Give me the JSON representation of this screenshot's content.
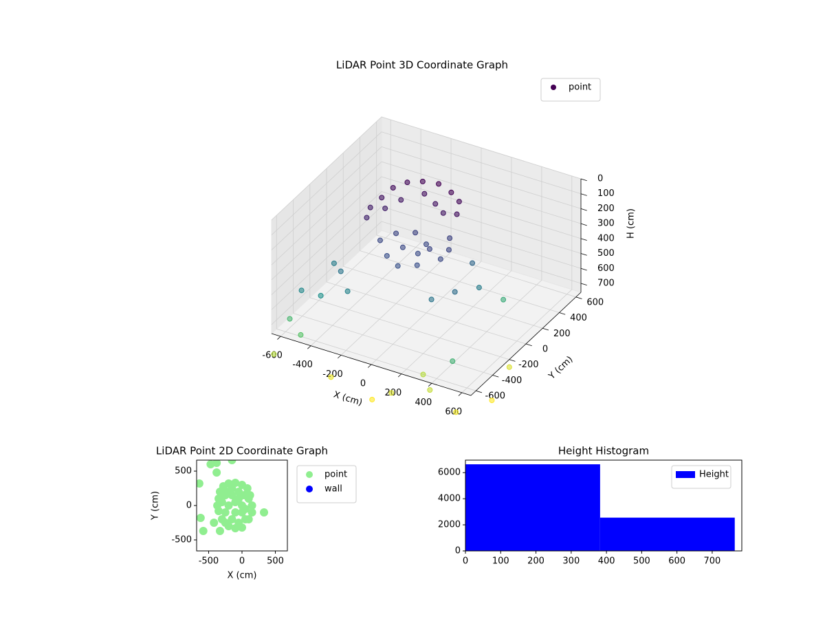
{
  "chart_data": [
    {
      "type": "scatter3d",
      "title": "LiDAR Point 3D Coordinate Graph",
      "x_label": "X (cm)",
      "y_label": "Y (cm)",
      "z_label": "H (cm)",
      "xlim": [
        -660,
        660
      ],
      "ylim": [
        -660,
        660
      ],
      "zlim": [
        0,
        760
      ],
      "zinvert": true,
      "xticks": [
        -600,
        -400,
        -200,
        0,
        200,
        400,
        600
      ],
      "yticks": [
        -600,
        -400,
        -200,
        0,
        200,
        400,
        600
      ],
      "zticks": [
        0,
        100,
        200,
        300,
        400,
        500,
        600,
        700
      ],
      "cmap": "viridis",
      "grid": true,
      "legend": "upper right",
      "series": [
        {
          "name": "point",
          "x": [
            -350,
            -330,
            -280,
            -200,
            -100,
            0,
            80,
            120,
            -370,
            -350,
            -250,
            -150,
            -50,
            30,
            -300,
            -250,
            -150,
            -50,
            50,
            150,
            150,
            100,
            -100,
            0,
            -200,
            0,
            -100,
            50,
            -400,
            -500,
            -300,
            -450,
            200,
            300,
            250,
            350,
            -550,
            -600,
            450,
            400,
            -500,
            -650,
            100,
            300,
            500,
            600,
            -300,
            0,
            550,
            200
          ],
          "y": [
            100,
            200,
            280,
            320,
            330,
            300,
            250,
            150,
            0,
            -80,
            150,
            250,
            200,
            150,
            50,
            -100,
            -200,
            -250,
            -200,
            -100,
            0,
            100,
            -100,
            -100,
            0,
            0,
            50,
            -50,
            -300,
            -200,
            -400,
            -450,
            -300,
            -200,
            100,
            0,
            -500,
            -550,
            -500,
            200,
            -600,
            -650,
            -600,
            -500,
            -550,
            -300,
            -600,
            -650,
            0,
            -400
          ],
          "z": [
            150,
            130,
            120,
            110,
            100,
            110,
            120,
            140,
            170,
            190,
            160,
            140,
            150,
            160,
            180,
            300,
            320,
            330,
            320,
            300,
            290,
            280,
            300,
            310,
            290,
            300,
            280,
            290,
            450,
            480,
            500,
            550,
            450,
            420,
            400,
            480,
            520,
            700,
            680,
            650,
            750,
            900,
            950,
            920,
            980,
            1000,
            970,
            1000,
            950,
            900
          ]
        }
      ]
    },
    {
      "type": "scatter",
      "title": "LiDAR Point 2D Coordinate Graph",
      "x_label": "X (cm)",
      "y_label": "Y (cm)",
      "xlim": [
        -680,
        680
      ],
      "ylim": [
        -660,
        660
      ],
      "xticks": [
        -500,
        0,
        500
      ],
      "yticks": [
        -500,
        0,
        500
      ],
      "legend": "outside upper right",
      "series": [
        {
          "name": "point",
          "color": "#90ee90",
          "x": [
            -350,
            -330,
            -280,
            -200,
            -100,
            0,
            80,
            120,
            -370,
            -350,
            -250,
            -150,
            -50,
            30,
            -300,
            -250,
            -150,
            -50,
            50,
            150,
            150,
            100,
            -100,
            0,
            -200,
            0,
            -100,
            50,
            -470,
            -380,
            -620,
            -580,
            330,
            -640,
            -420,
            -330,
            -380,
            -150,
            -280,
            -200,
            -100,
            0,
            -250,
            100,
            -150,
            -50,
            -300,
            -200
          ],
          "y": [
            100,
            200,
            280,
            320,
            330,
            300,
            250,
            150,
            0,
            -80,
            150,
            250,
            200,
            150,
            50,
            -100,
            -200,
            -250,
            -200,
            -100,
            0,
            100,
            -100,
            -100,
            0,
            0,
            50,
            -50,
            600,
            480,
            -180,
            -370,
            -100,
            320,
            -250,
            -370,
            620,
            660,
            250,
            -300,
            -330,
            -320,
            -250,
            -200,
            150,
            100,
            -200,
            200
          ]
        },
        {
          "name": "wall",
          "color": "#0000ff",
          "x": [],
          "y": []
        }
      ]
    },
    {
      "type": "histogram",
      "title": "Height Histogram",
      "bins": [
        0,
        382,
        764
      ],
      "xlim": [
        0,
        784
      ],
      "ylim": [
        0,
        6960
      ],
      "xticks": [
        0,
        100,
        200,
        300,
        400,
        500,
        600,
        700
      ],
      "yticks": [
        0,
        2000,
        4000,
        6000
      ],
      "legend": "upper right",
      "series": [
        {
          "name": "Height",
          "color": "#0000ff",
          "values": [
            6640,
            2550
          ]
        }
      ]
    }
  ]
}
